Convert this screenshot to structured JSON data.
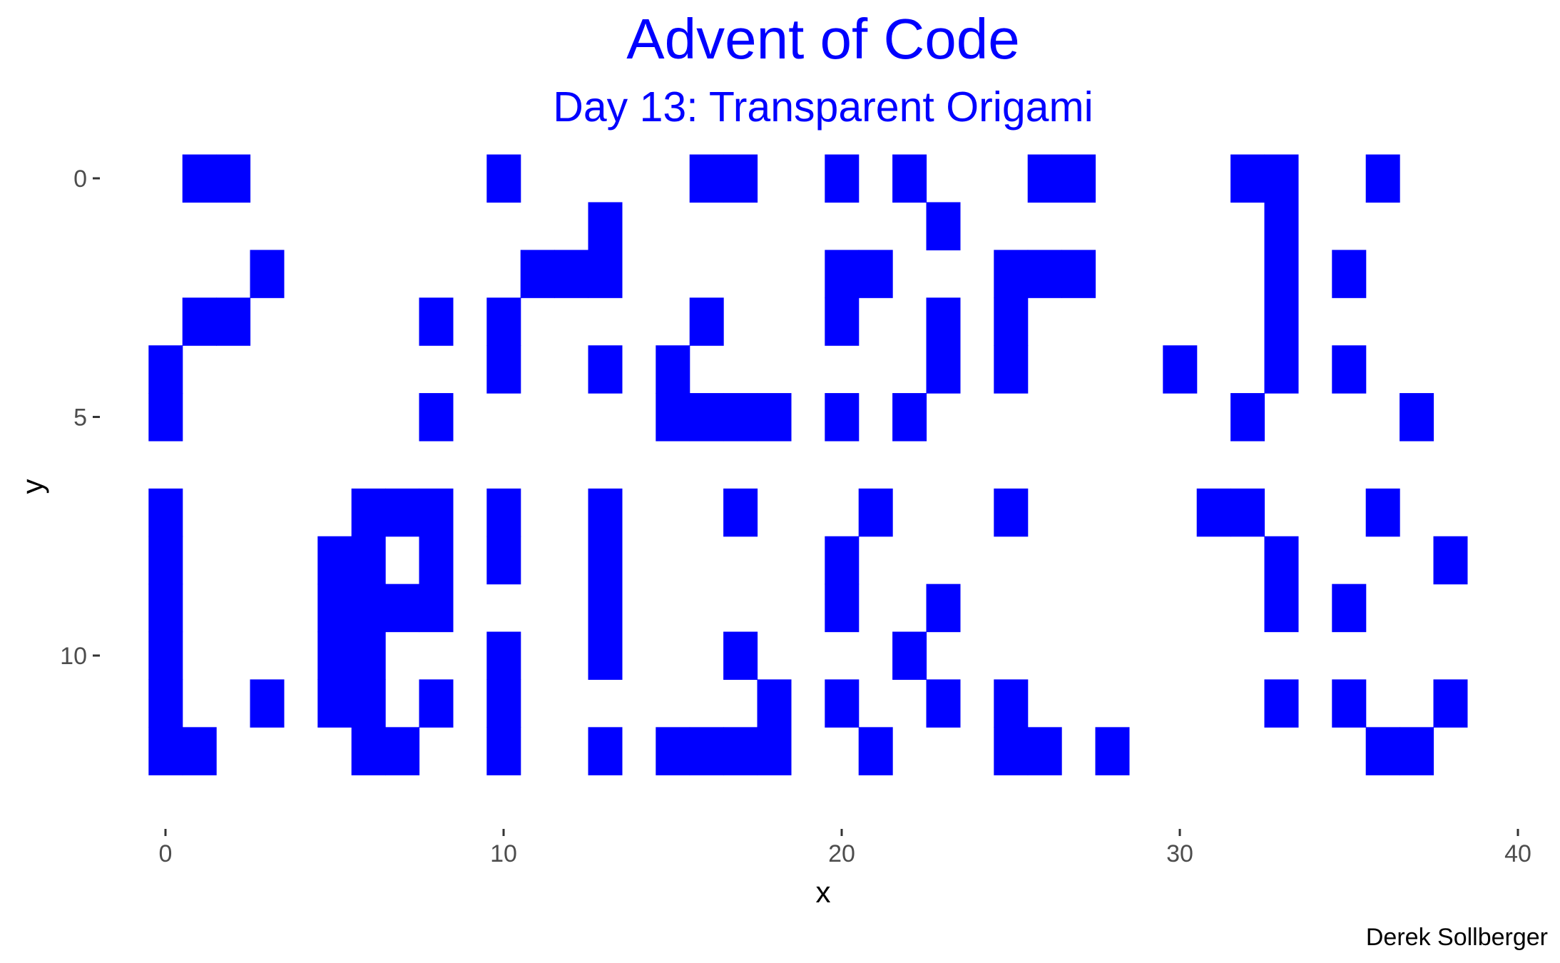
{
  "chart_data": {
    "type": "heatmap",
    "title": "Advent of Code",
    "subtitle": "Day 13: Transparent Origami",
    "xlabel": "x",
    "ylabel": "y",
    "caption": "Derek Sollberger",
    "xlim": [
      0,
      40
    ],
    "ylim": [
      0,
      13
    ],
    "y_reversed": true,
    "x_ticks": [
      0,
      10,
      20,
      30,
      40
    ],
    "y_ticks": [
      0,
      5,
      10
    ],
    "grid": false,
    "fill_color": "#0000ff",
    "title_color": "#0000ff",
    "points": [
      [
        1,
        0
      ],
      [
        2,
        0
      ],
      [
        10,
        0
      ],
      [
        16,
        0
      ],
      [
        17,
        0
      ],
      [
        20,
        0
      ],
      [
        22,
        0
      ],
      [
        26,
        0
      ],
      [
        27,
        0
      ],
      [
        32,
        0
      ],
      [
        33,
        0
      ],
      [
        36,
        0
      ],
      [
        13,
        1
      ],
      [
        23,
        1
      ],
      [
        33,
        1
      ],
      [
        3,
        2
      ],
      [
        11,
        2
      ],
      [
        12,
        2
      ],
      [
        13,
        2
      ],
      [
        20,
        2
      ],
      [
        21,
        2
      ],
      [
        25,
        2
      ],
      [
        26,
        2
      ],
      [
        27,
        2
      ],
      [
        33,
        2
      ],
      [
        35,
        2
      ],
      [
        1,
        3
      ],
      [
        2,
        3
      ],
      [
        8,
        3
      ],
      [
        10,
        3
      ],
      [
        16,
        3
      ],
      [
        20,
        3
      ],
      [
        23,
        3
      ],
      [
        25,
        3
      ],
      [
        33,
        3
      ],
      [
        0,
        4
      ],
      [
        10,
        4
      ],
      [
        13,
        4
      ],
      [
        15,
        4
      ],
      [
        23,
        4
      ],
      [
        25,
        4
      ],
      [
        30,
        4
      ],
      [
        33,
        4
      ],
      [
        35,
        4
      ],
      [
        0,
        5
      ],
      [
        8,
        5
      ],
      [
        15,
        5
      ],
      [
        16,
        5
      ],
      [
        17,
        5
      ],
      [
        18,
        5
      ],
      [
        20,
        5
      ],
      [
        22,
        5
      ],
      [
        32,
        5
      ],
      [
        37,
        5
      ],
      [
        0,
        7
      ],
      [
        6,
        7
      ],
      [
        7,
        7
      ],
      [
        8,
        7
      ],
      [
        10,
        7
      ],
      [
        13,
        7
      ],
      [
        17,
        7
      ],
      [
        21,
        7
      ],
      [
        25,
        7
      ],
      [
        31,
        7
      ],
      [
        32,
        7
      ],
      [
        36,
        7
      ],
      [
        0,
        8
      ],
      [
        5,
        8
      ],
      [
        6,
        8
      ],
      [
        8,
        8
      ],
      [
        10,
        8
      ],
      [
        13,
        8
      ],
      [
        20,
        8
      ],
      [
        33,
        8
      ],
      [
        38,
        8
      ],
      [
        0,
        9
      ],
      [
        5,
        9
      ],
      [
        6,
        9
      ],
      [
        7,
        9
      ],
      [
        8,
        9
      ],
      [
        13,
        9
      ],
      [
        20,
        9
      ],
      [
        23,
        9
      ],
      [
        33,
        9
      ],
      [
        35,
        9
      ],
      [
        0,
        10
      ],
      [
        5,
        10
      ],
      [
        6,
        10
      ],
      [
        10,
        10
      ],
      [
        13,
        10
      ],
      [
        17,
        10
      ],
      [
        22,
        10
      ],
      [
        0,
        11
      ],
      [
        3,
        11
      ],
      [
        5,
        11
      ],
      [
        6,
        11
      ],
      [
        8,
        11
      ],
      [
        10,
        11
      ],
      [
        18,
        11
      ],
      [
        20,
        11
      ],
      [
        23,
        11
      ],
      [
        25,
        11
      ],
      [
        33,
        11
      ],
      [
        35,
        11
      ],
      [
        38,
        11
      ],
      [
        0,
        12
      ],
      [
        1,
        12
      ],
      [
        6,
        12
      ],
      [
        7,
        12
      ],
      [
        10,
        12
      ],
      [
        13,
        12
      ],
      [
        15,
        12
      ],
      [
        16,
        12
      ],
      [
        17,
        12
      ],
      [
        18,
        12
      ],
      [
        21,
        12
      ],
      [
        25,
        12
      ],
      [
        26,
        12
      ],
      [
        28,
        12
      ],
      [
        36,
        12
      ],
      [
        37,
        12
      ]
    ]
  }
}
